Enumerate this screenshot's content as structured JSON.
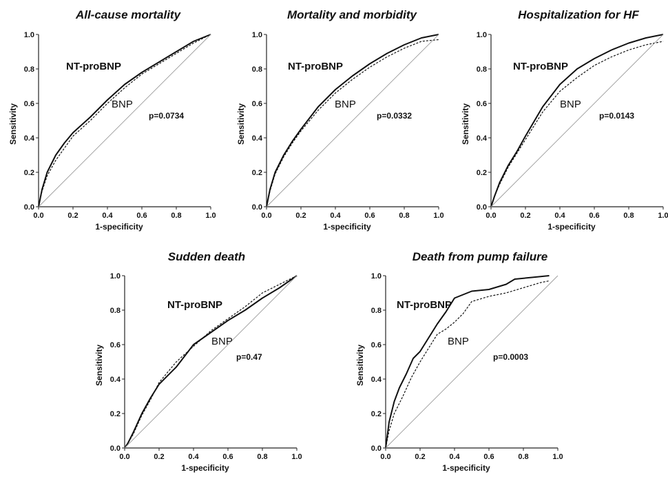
{
  "chart_data": [
    {
      "type": "line",
      "title": "All-cause mortality",
      "xlabel": "1-specificity",
      "ylabel": "Sensitivity",
      "xlim": [
        0,
        1
      ],
      "ylim": [
        0,
        1
      ],
      "ticks": [
        "0.0",
        "0.2",
        "0.4",
        "0.6",
        "0.8",
        "1.0"
      ],
      "annotations": {
        "series_a": "NT-proBNP",
        "series_b": "BNP",
        "pvalue": "p=0.0734"
      },
      "series": [
        {
          "style": "solid",
          "x": [
            0,
            0.02,
            0.05,
            0.1,
            0.15,
            0.2,
            0.3,
            0.4,
            0.5,
            0.6,
            0.7,
            0.8,
            0.9,
            1.0
          ],
          "y": [
            0,
            0.1,
            0.2,
            0.3,
            0.37,
            0.43,
            0.52,
            0.62,
            0.71,
            0.78,
            0.84,
            0.9,
            0.96,
            1.0
          ]
        },
        {
          "style": "dashed",
          "x": [
            0,
            0.02,
            0.05,
            0.1,
            0.15,
            0.2,
            0.3,
            0.4,
            0.5,
            0.6,
            0.7,
            0.8,
            0.9,
            1.0
          ],
          "y": [
            0,
            0.09,
            0.18,
            0.27,
            0.34,
            0.41,
            0.5,
            0.6,
            0.69,
            0.77,
            0.83,
            0.89,
            0.95,
            1.0
          ]
        },
        {
          "style": "reference",
          "x": [
            0,
            1
          ],
          "y": [
            0,
            1
          ]
        }
      ]
    },
    {
      "type": "line",
      "title": "Mortality and morbidity",
      "xlabel": "1-specificity",
      "ylabel": "Sensitivity",
      "xlim": [
        0,
        1
      ],
      "ylim": [
        0,
        1
      ],
      "ticks": [
        "0.0",
        "0.2",
        "0.4",
        "0.6",
        "0.8",
        "1.0"
      ],
      "annotations": {
        "series_a": "NT-proBNP",
        "series_b": "BNP",
        "pvalue": "p=0.0332"
      },
      "series": [
        {
          "style": "solid",
          "x": [
            0,
            0.02,
            0.05,
            0.1,
            0.15,
            0.2,
            0.3,
            0.4,
            0.5,
            0.6,
            0.7,
            0.8,
            0.9,
            1.0
          ],
          "y": [
            0,
            0.1,
            0.2,
            0.3,
            0.38,
            0.45,
            0.58,
            0.68,
            0.76,
            0.83,
            0.89,
            0.94,
            0.98,
            1.0
          ]
        },
        {
          "style": "dashed",
          "x": [
            0,
            0.02,
            0.05,
            0.1,
            0.15,
            0.2,
            0.3,
            0.4,
            0.5,
            0.6,
            0.7,
            0.8,
            0.9,
            1.0
          ],
          "y": [
            0,
            0.09,
            0.19,
            0.29,
            0.37,
            0.44,
            0.56,
            0.66,
            0.74,
            0.81,
            0.87,
            0.92,
            0.96,
            0.97
          ]
        },
        {
          "style": "reference",
          "x": [
            0,
            1
          ],
          "y": [
            0,
            1
          ]
        }
      ]
    },
    {
      "type": "line",
      "title": "Hospitalization for HF",
      "xlabel": "1-specificity",
      "ylabel": "Sensitivity",
      "xlim": [
        0,
        1
      ],
      "ylim": [
        0,
        1
      ],
      "ticks": [
        "0.0",
        "0.2",
        "0.4",
        "0.6",
        "0.8",
        "1.0"
      ],
      "annotations": {
        "series_a": "NT-proBNP",
        "series_b": "BNP",
        "pvalue": "p=0.0143"
      },
      "series": [
        {
          "style": "solid",
          "x": [
            0,
            0.02,
            0.05,
            0.1,
            0.15,
            0.2,
            0.3,
            0.4,
            0.5,
            0.6,
            0.7,
            0.8,
            0.9,
            1.0
          ],
          "y": [
            0,
            0.06,
            0.14,
            0.24,
            0.32,
            0.41,
            0.58,
            0.71,
            0.8,
            0.86,
            0.91,
            0.95,
            0.98,
            1.0
          ]
        },
        {
          "style": "dashed",
          "x": [
            0,
            0.02,
            0.05,
            0.1,
            0.15,
            0.2,
            0.3,
            0.4,
            0.5,
            0.6,
            0.7,
            0.8,
            0.9,
            1.0
          ],
          "y": [
            0,
            0.06,
            0.13,
            0.23,
            0.31,
            0.39,
            0.55,
            0.67,
            0.75,
            0.82,
            0.87,
            0.91,
            0.94,
            0.96
          ]
        },
        {
          "style": "reference",
          "x": [
            0,
            1
          ],
          "y": [
            0,
            1
          ]
        }
      ]
    },
    {
      "type": "line",
      "title": "Sudden death",
      "xlabel": "1-specificity",
      "ylabel": "Sensitivity",
      "xlim": [
        0,
        1
      ],
      "ylim": [
        0,
        1
      ],
      "ticks": [
        "0.0",
        "0.2",
        "0.4",
        "0.6",
        "0.8",
        "1.0"
      ],
      "annotations": {
        "series_a": "NT-proBNP",
        "series_b": "BNP",
        "pvalue": "p=0.47"
      },
      "series": [
        {
          "style": "solid",
          "x": [
            0,
            0.02,
            0.05,
            0.1,
            0.15,
            0.2,
            0.3,
            0.4,
            0.5,
            0.6,
            0.7,
            0.8,
            0.9,
            1.0
          ],
          "y": [
            0,
            0.03,
            0.09,
            0.2,
            0.29,
            0.37,
            0.47,
            0.6,
            0.67,
            0.74,
            0.8,
            0.87,
            0.93,
            1.0
          ]
        },
        {
          "style": "dashed",
          "x": [
            0,
            0.02,
            0.05,
            0.1,
            0.15,
            0.2,
            0.3,
            0.4,
            0.5,
            0.6,
            0.7,
            0.8,
            0.9,
            1.0
          ],
          "y": [
            0,
            0.03,
            0.08,
            0.19,
            0.28,
            0.38,
            0.5,
            0.59,
            0.68,
            0.75,
            0.82,
            0.9,
            0.95,
            1.0
          ]
        },
        {
          "style": "reference",
          "x": [
            0,
            1
          ],
          "y": [
            0,
            1
          ]
        }
      ]
    },
    {
      "type": "line",
      "title": "Death from pump failure",
      "xlabel": "1-specificity",
      "ylabel": "Sensitivity",
      "xlim": [
        0,
        1
      ],
      "ylim": [
        0,
        1
      ],
      "ticks": [
        "0.0",
        "0.2",
        "0.4",
        "0.6",
        "0.8",
        "1.0"
      ],
      "annotations": {
        "series_a": "NT-proBNP",
        "series_b": "BNP",
        "pvalue": "p=0.0003"
      },
      "series": [
        {
          "style": "solid",
          "x": [
            0,
            0.02,
            0.05,
            0.08,
            0.12,
            0.16,
            0.2,
            0.25,
            0.3,
            0.35,
            0.4,
            0.45,
            0.5,
            0.6,
            0.7,
            0.75,
            0.85,
            0.95
          ],
          "y": [
            0,
            0.15,
            0.27,
            0.35,
            0.43,
            0.52,
            0.56,
            0.64,
            0.72,
            0.79,
            0.87,
            0.89,
            0.91,
            0.92,
            0.95,
            0.98,
            0.99,
            1.0
          ]
        },
        {
          "style": "dashed",
          "x": [
            0,
            0.02,
            0.05,
            0.1,
            0.15,
            0.2,
            0.25,
            0.3,
            0.35,
            0.4,
            0.45,
            0.5,
            0.6,
            0.7,
            0.8,
            0.9,
            0.95
          ],
          "y": [
            0,
            0.1,
            0.2,
            0.3,
            0.41,
            0.5,
            0.58,
            0.66,
            0.69,
            0.73,
            0.78,
            0.85,
            0.88,
            0.9,
            0.93,
            0.96,
            0.97
          ]
        },
        {
          "style": "reference",
          "x": [
            0,
            1
          ],
          "y": [
            0,
            1
          ]
        }
      ]
    }
  ]
}
